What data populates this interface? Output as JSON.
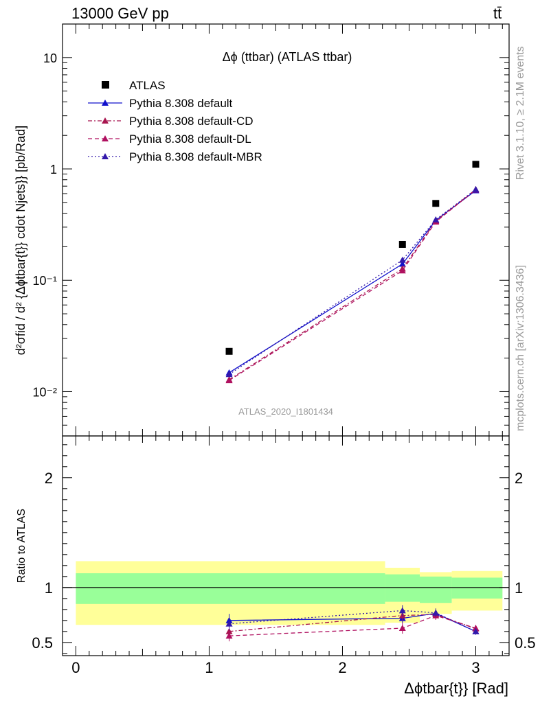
{
  "header": {
    "process": "13000 GeV pp",
    "particle": "tt̄"
  },
  "side_labels": {
    "rivet": "Rivet 3.1.10, ≥ 2.1M events",
    "mcplots": "mcplots.cern.ch [arXiv:1306.3436]"
  },
  "chart_data": [
    {
      "type": "scatter",
      "title": "Δϕ (ttbar) (ATLAS ttbar)",
      "analysis_id": "ATLAS_2020_I1801434",
      "ylabel": "d²σfid / d² {Δϕtbar{t}} cdot Njets}} [pb/Rad]",
      "yscale": "log",
      "ylim": [
        0.004,
        20
      ],
      "xlim": [
        -0.1,
        3.25
      ],
      "y_ticks": [
        "10⁻²",
        "10⁻¹",
        "1",
        "10"
      ],
      "legend_placement": "top-left",
      "x": [
        1.15,
        2.45,
        2.7,
        3.0
      ],
      "series": [
        {
          "name": "ATLAS",
          "values": [
            0.023,
            0.21,
            0.49,
            1.1
          ],
          "color": "#000000",
          "marker": "square",
          "dash": "none"
        },
        {
          "name": "Pythia 8.308 default",
          "values": [
            0.0148,
            0.14,
            0.345,
            0.64
          ],
          "color": "#1010cc",
          "marker": "triangle",
          "dash": "solid"
        },
        {
          "name": "Pythia 8.308 default-CD",
          "values": [
            0.0128,
            0.127,
            0.34,
            0.655
          ],
          "color": "#a8154f",
          "marker": "triangle",
          "dash": "dashdot"
        },
        {
          "name": "Pythia 8.308 default-DL",
          "values": [
            0.0126,
            0.122,
            0.335,
            0.65
          ],
          "color": "#b01060",
          "marker": "triangle",
          "dash": "dashed"
        },
        {
          "name": "Pythia 8.308 default-MBR",
          "values": [
            0.0143,
            0.152,
            0.35,
            0.655
          ],
          "color": "#3318aa",
          "marker": "triangle",
          "dash": "dotted"
        }
      ]
    },
    {
      "type": "line",
      "ylabel": "Ratio to ATLAS",
      "xlabel": "Δϕtbar{t}} [Rad]",
      "ylim": [
        0.38,
        2.38
      ],
      "xlim": [
        -0.1,
        3.25
      ],
      "y_ticks": [
        0.5,
        1,
        2
      ],
      "x_ticks": [
        0,
        1,
        2,
        3
      ],
      "reference_line": 1,
      "x": [
        1.15,
        2.45,
        2.7,
        3.0
      ],
      "bands": [
        {
          "x_from": 0.0,
          "x_to": 2.32,
          "green": [
            0.85,
            1.13
          ],
          "yellow": [
            0.66,
            1.24
          ]
        },
        {
          "x_from": 2.32,
          "x_to": 2.58,
          "green": [
            0.87,
            1.12
          ],
          "yellow": [
            0.68,
            1.18
          ]
        },
        {
          "x_from": 2.58,
          "x_to": 2.82,
          "green": [
            0.86,
            1.1
          ],
          "yellow": [
            0.76,
            1.14
          ]
        },
        {
          "x_from": 2.82,
          "x_to": 3.2,
          "green": [
            0.9,
            1.09
          ],
          "yellow": [
            0.79,
            1.15
          ]
        }
      ],
      "series": [
        {
          "name": "Pythia 8.308 default",
          "values": [
            0.7,
            0.72,
            0.765,
            0.6
          ],
          "errors": [
            0.06,
            0.04,
            0.03,
            0.02
          ]
        },
        {
          "name": "Pythia 8.308 default-CD",
          "values": [
            0.6,
            0.745,
            0.755,
            0.625
          ],
          "errors": [
            0.05,
            0.05,
            0.04,
            0.03
          ]
        },
        {
          "name": "Pythia 8.308 default-DL",
          "values": [
            0.56,
            0.63,
            0.745,
            0.63
          ],
          "errors": [
            0.05,
            0.05,
            0.04,
            0.03
          ]
        },
        {
          "name": "Pythia 8.308 default-MBR",
          "values": [
            0.67,
            0.79,
            0.77,
            0.6
          ],
          "errors": [
            0.06,
            0.05,
            0.04,
            0.03
          ]
        }
      ]
    }
  ]
}
